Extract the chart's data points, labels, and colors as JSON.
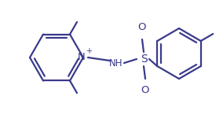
{
  "bg_color": "#ffffff",
  "line_color": "#3a3a8c",
  "line_width": 1.6,
  "figsize": [
    2.84,
    1.46
  ],
  "dpi": 100,
  "xlim": [
    0,
    284
  ],
  "ylim": [
    0,
    146
  ]
}
